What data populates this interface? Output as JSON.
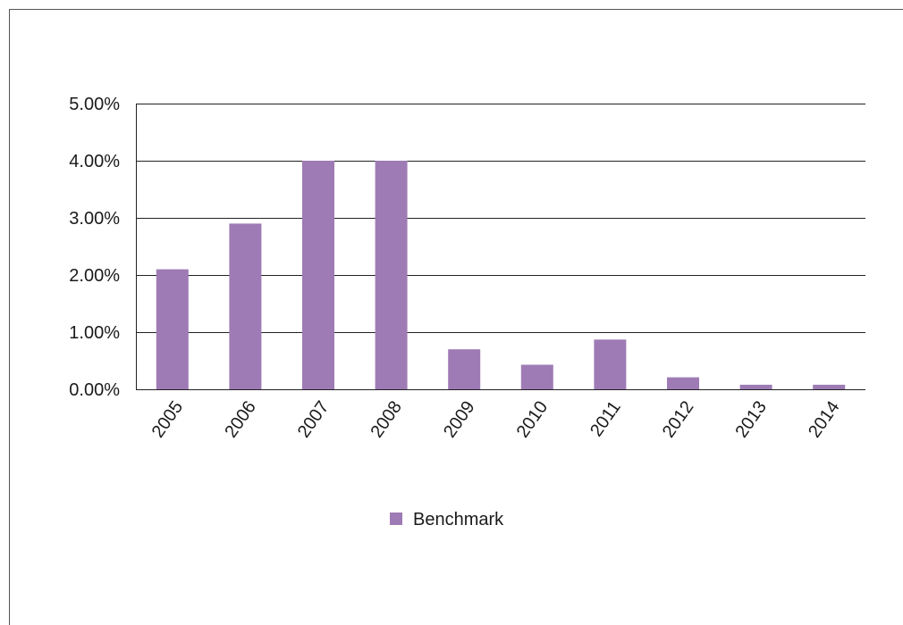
{
  "chart_data": {
    "type": "bar",
    "categories": [
      "2005",
      "2006",
      "2007",
      "2008",
      "2009",
      "2010",
      "2011",
      "2012",
      "2013",
      "2014"
    ],
    "series": [
      {
        "name": "Benchmark",
        "color": "#9e7bb5",
        "values": [
          2.1,
          2.9,
          4.0,
          4.0,
          0.7,
          0.43,
          0.87,
          0.21,
          0.08,
          0.08
        ]
      }
    ],
    "ylim": [
      0,
      5
    ],
    "yticks": [
      0,
      1,
      2,
      3,
      4,
      5
    ],
    "ytick_labels": [
      "0.00%",
      "1.00%",
      "2.00%",
      "3.00%",
      "4.00%",
      "5.00%"
    ],
    "ytick_format": "percent-2dp",
    "xlabel": "",
    "ylabel": "",
    "title": "",
    "grid": "horizontal",
    "legend_position": "bottom-center"
  }
}
